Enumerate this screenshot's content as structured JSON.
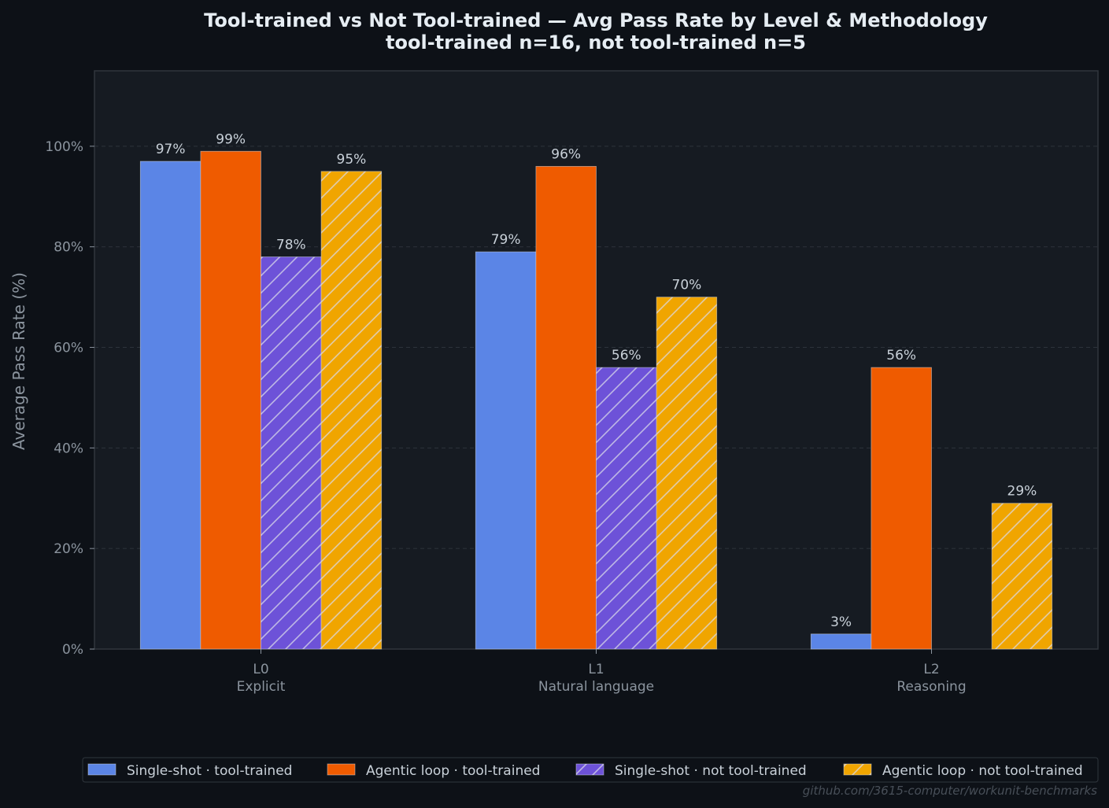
{
  "chart_data": {
    "type": "bar",
    "title": "Tool-trained vs Not Tool-trained — Avg Pass Rate by Level & Methodology",
    "subtitle": "tool-trained n=16, not tool-trained n=5",
    "ylabel": "Average Pass Rate (%)",
    "xlabel": "",
    "ylim": [
      0,
      115
    ],
    "yticks": [
      "0%",
      "20%",
      "40%",
      "60%",
      "80%",
      "100%"
    ],
    "ytick_values": [
      0,
      20,
      40,
      60,
      80,
      100
    ],
    "grid": true,
    "legend_position": "bottom",
    "categories": [
      {
        "level": "L0",
        "sub": "Explicit"
      },
      {
        "level": "L1",
        "sub": "Natural language"
      },
      {
        "level": "L2",
        "sub": "Reasoning"
      }
    ],
    "series": [
      {
        "name": "Single-shot · tool-trained",
        "color": "#5b85e6",
        "hatch": false,
        "values": [
          97,
          79,
          3
        ],
        "labels": [
          "97%",
          "79%",
          "3%"
        ]
      },
      {
        "name": "Agentic loop · tool-trained",
        "color": "#ef5b00",
        "hatch": false,
        "values": [
          99,
          96,
          56
        ],
        "labels": [
          "99%",
          "96%",
          "56%"
        ]
      },
      {
        "name": "Single-shot · not tool-trained",
        "color": "#6d52d8",
        "hatch": true,
        "values": [
          78,
          56,
          0
        ],
        "labels": [
          "78%",
          "56%",
          ""
        ]
      },
      {
        "name": "Agentic loop · not tool-trained",
        "color": "#f0a500",
        "hatch": true,
        "values": [
          95,
          70,
          29
        ],
        "labels": [
          "95%",
          "70%",
          "29%"
        ]
      }
    ]
  },
  "footer": "github.com/3615-computer/workunit-benchmarks"
}
